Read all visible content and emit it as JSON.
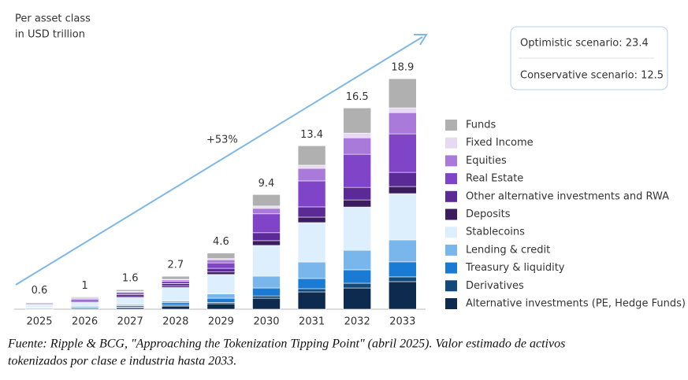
{
  "chart_data": {
    "type": "stacked_bar",
    "subtitle": [
      "Per asset class",
      "in USD trillion"
    ],
    "annotation": "+53%",
    "scenarios": [
      "Optimistic scenario: 23.4",
      "Conservative scenario: 12.5"
    ],
    "footnote": [
      "Fuente: Ripple & BCG, \"Approaching the Tokenization Tipping Point\" (abril 2025). Valor estimado de activos",
      "tokenizados por clase e industria hasta 2033."
    ],
    "categories": [
      "2025",
      "2026",
      "2027",
      "2028",
      "2029",
      "2030",
      "2031",
      "2032",
      "2033"
    ],
    "totals": [
      0.6,
      1.0,
      1.6,
      2.7,
      4.6,
      9.4,
      13.4,
      16.5,
      18.9
    ],
    "series": [
      {
        "name": "Alternative investments (PE, Hedge Funds)",
        "color": "#0d2b4e",
        "values": [
          0.05,
          0.08,
          0.12,
          0.25,
          0.45,
          0.9,
          1.42,
          1.74,
          2.26
        ]
      },
      {
        "name": "Derivatives",
        "color": "#114a7a",
        "values": [
          0.02,
          0.03,
          0.05,
          0.08,
          0.1,
          0.19,
          0.26,
          0.39,
          0.39
        ]
      },
      {
        "name": "Treasury & liquidity",
        "color": "#1a7bd4",
        "values": [
          0.05,
          0.08,
          0.12,
          0.2,
          0.35,
          0.65,
          0.84,
          1.1,
          1.23
        ]
      },
      {
        "name": "Lending & credit",
        "color": "#78b6ec",
        "values": [
          0.04,
          0.06,
          0.1,
          0.15,
          0.35,
          0.97,
          1.35,
          1.6,
          1.8
        ]
      },
      {
        "name": "Stablecoins",
        "color": "#ddeefc",
        "values": [
          0.18,
          0.3,
          0.55,
          1.1,
          1.6,
          2.52,
          3.23,
          3.55,
          3.8
        ]
      },
      {
        "name": "Deposits",
        "color": "#3b1c5e",
        "values": [
          0.04,
          0.06,
          0.08,
          0.12,
          0.2,
          0.39,
          0.45,
          0.58,
          0.58
        ]
      },
      {
        "name": "Other alternative investments and RWA",
        "color": "#5b2a96",
        "values": [
          0.06,
          0.12,
          0.18,
          0.2,
          0.3,
          0.65,
          0.84,
          1.03,
          1.16
        ]
      },
      {
        "name": "Real Estate",
        "color": "#8044c8",
        "values": [
          0.06,
          0.1,
          0.15,
          0.2,
          0.45,
          1.55,
          2.13,
          2.71,
          3.16
        ]
      },
      {
        "name": "Equities",
        "color": "#a97ad9",
        "values": [
          0.04,
          0.06,
          0.08,
          0.1,
          0.25,
          0.45,
          1.03,
          1.35,
          1.74
        ]
      },
      {
        "name": "Fixed Income",
        "color": "#e7d9f4",
        "values": [
          0.02,
          0.03,
          0.04,
          0.05,
          0.1,
          0.19,
          0.26,
          0.39,
          0.39
        ]
      },
      {
        "name": "Funds",
        "color": "#b0b0b0",
        "values": [
          0.04,
          0.08,
          0.13,
          0.25,
          0.45,
          0.94,
          1.59,
          2.06,
          2.39
        ]
      }
    ]
  }
}
